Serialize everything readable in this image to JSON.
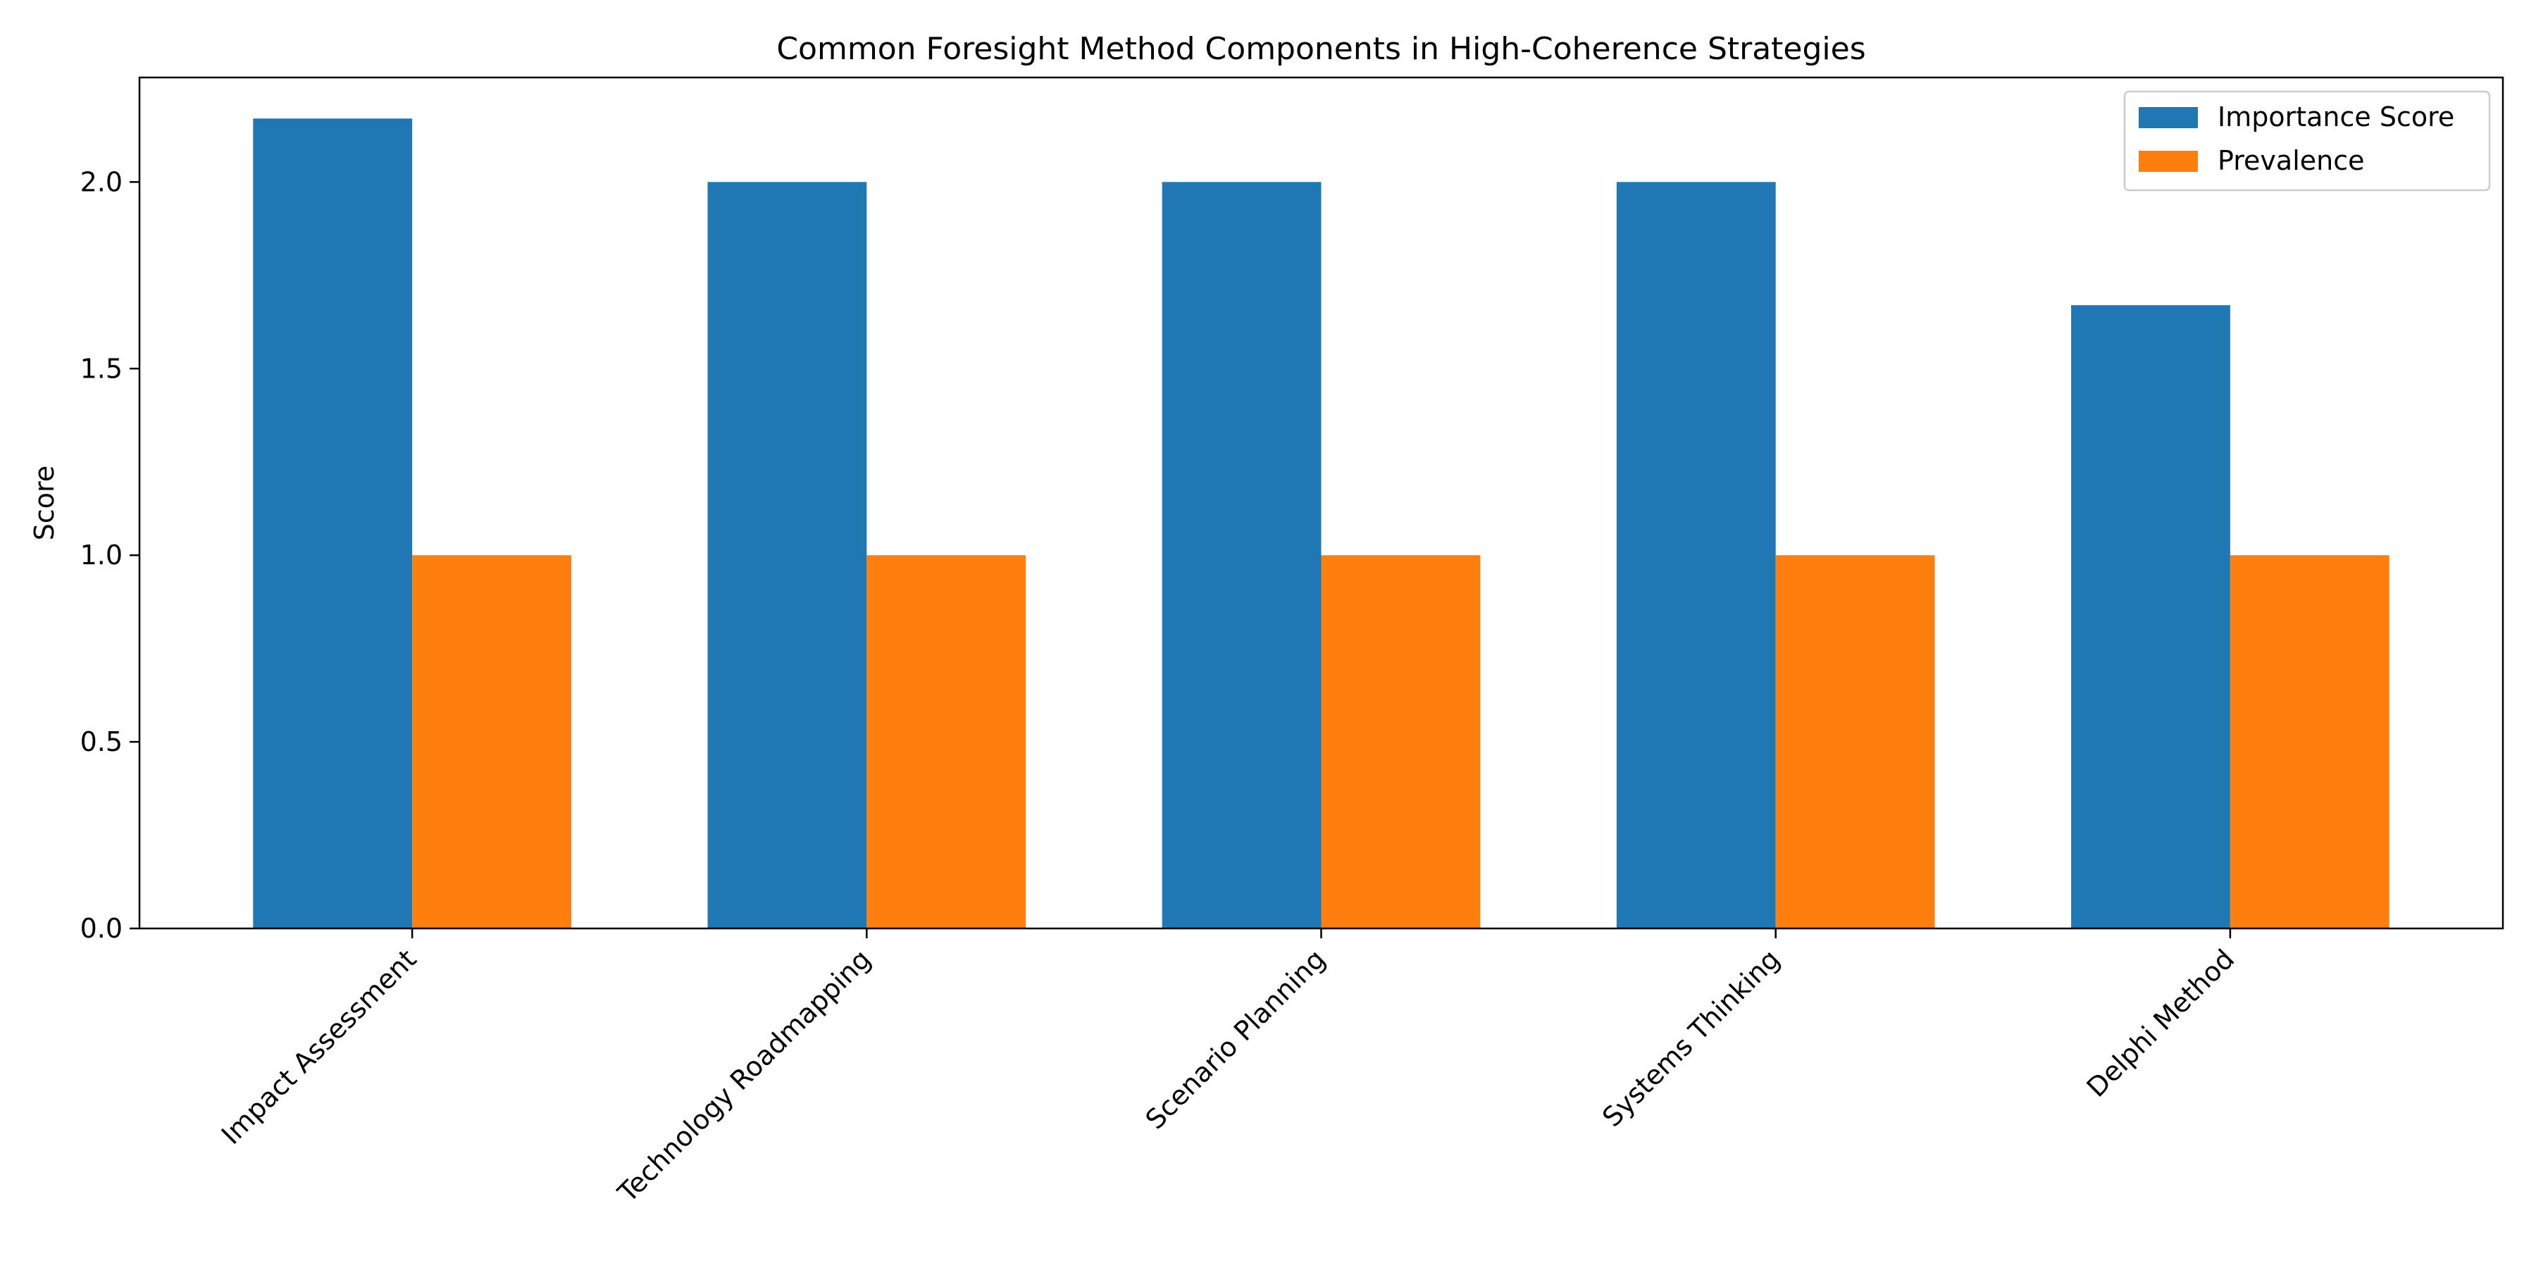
{
  "chart_data": {
    "type": "bar",
    "title": "Common Foresight Method Components in High-Coherence Strategies",
    "xlabel": "",
    "ylabel": "Score",
    "categories": [
      "Impact Assessment",
      "Technology Roadmapping",
      "Scenario Planning",
      "Systems Thinking",
      "Delphi Method"
    ],
    "series": [
      {
        "name": "Importance Score",
        "color": "#1f77b4",
        "values": [
          2.17,
          2.0,
          2.0,
          2.0,
          1.67
        ]
      },
      {
        "name": "Prevalence",
        "color": "#ff7f0e",
        "values": [
          1.0,
          1.0,
          1.0,
          1.0,
          1.0
        ]
      }
    ],
    "ylim": [
      0,
      2.28
    ],
    "yticks": [
      "0.0",
      "0.5",
      "1.0",
      "1.5",
      "2.0"
    ],
    "grid": false,
    "legend_position": "top-right"
  }
}
